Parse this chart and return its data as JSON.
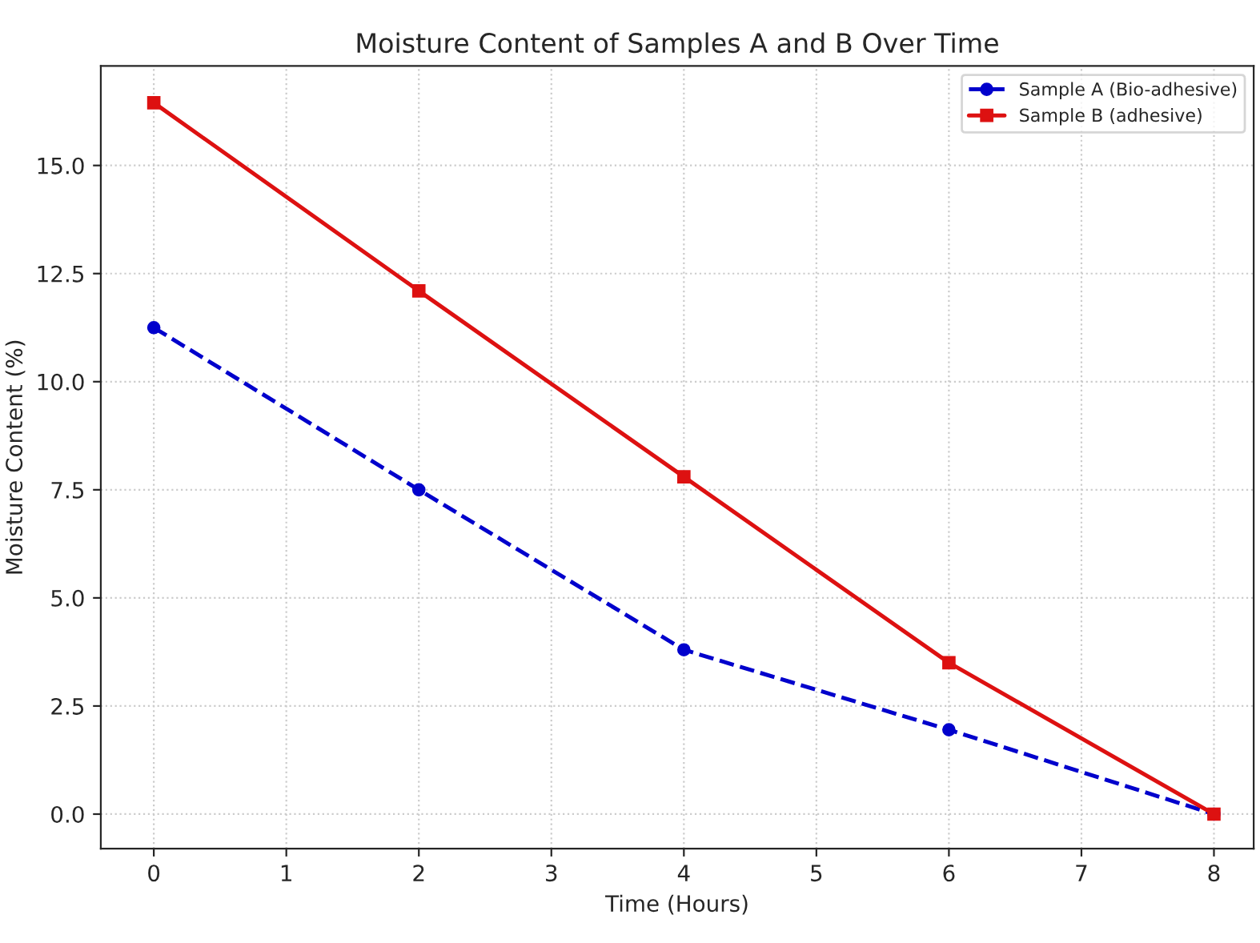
{
  "chart_data": {
    "type": "line",
    "title": "Moisture Content of Samples A and B Over Time",
    "xlabel": "Time (Hours)",
    "ylabel": "Moisture Content (%)",
    "x": [
      0,
      2,
      4,
      6,
      8
    ],
    "series": [
      {
        "name": "Sample A (Bio-adhesive)",
        "color": "#0000cc",
        "values": [
          11.25,
          7.5,
          3.8,
          1.95,
          0.0
        ],
        "marker": "circle",
        "line_style": "dashed"
      },
      {
        "name": "Sample B (adhesive)",
        "color": "#dd1111",
        "values": [
          16.45,
          12.1,
          7.8,
          3.5,
          0.0
        ],
        "marker": "square",
        "line_style": "solid"
      }
    ],
    "xlim": [
      -0.4,
      8.3
    ],
    "xticks": [
      0,
      1,
      2,
      3,
      4,
      5,
      6,
      7,
      8
    ],
    "ylim": [
      -0.8,
      17.3
    ],
    "yticks": [
      {
        "value": 0,
        "label": "0.0"
      },
      {
        "value": 2.5,
        "label": "2.5"
      },
      {
        "value": 5,
        "label": "5.0"
      },
      {
        "value": 7.5,
        "label": "7.5"
      },
      {
        "value": 10,
        "label": "10.0"
      },
      {
        "value": 12.5,
        "label": "12.5"
      },
      {
        "value": 15,
        "label": "15.0"
      }
    ],
    "grid": true,
    "legend": "top right"
  }
}
